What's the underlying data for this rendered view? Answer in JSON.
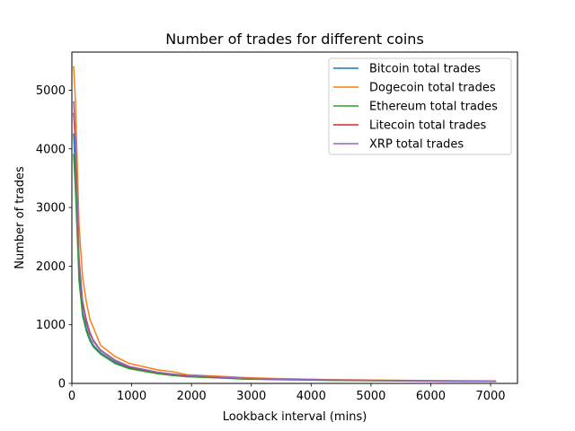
{
  "chart_data": {
    "type": "line",
    "title": "Number of trades for different coins",
    "xlabel": "Lookback interval (mins)",
    "ylabel": "Number of trades",
    "xlim": [
      0,
      7450
    ],
    "ylim": [
      0,
      5650
    ],
    "xticks": [
      0,
      1000,
      2000,
      3000,
      4000,
      5000,
      6000,
      7000
    ],
    "xtick_labels": [
      "0",
      "1000",
      "2000",
      "3000",
      "4000",
      "5000",
      "6000",
      "7000"
    ],
    "yticks": [
      0,
      1000,
      2000,
      3000,
      4000,
      5000
    ],
    "ytick_labels": [
      "0",
      "1000",
      "2000",
      "3000",
      "4000",
      "5000"
    ],
    "grid": false,
    "legend_position": "top-right",
    "x": [
      30,
      60,
      120,
      180,
      240,
      300,
      360,
      480,
      720,
      960,
      1440,
      1680,
      1920,
      2880,
      3360,
      4320,
      5040,
      5760,
      7080
    ],
    "series": [
      {
        "name": "Bitcoin total trades",
        "color": "#1f77b4",
        "values": [
          4250,
          3600,
          1900,
          1200,
          950,
          770,
          650,
          520,
          360,
          260,
          170,
          140,
          120,
          80,
          70,
          55,
          48,
          42,
          35
        ]
      },
      {
        "name": "Dogecoin total trades",
        "color": "#ff7f0e",
        "values": [
          5400,
          4800,
          2700,
          1800,
          1400,
          1100,
          950,
          650,
          460,
          340,
          230,
          200,
          150,
          100,
          85,
          65,
          57,
          50,
          43
        ]
      },
      {
        "name": "Ethereum total trades",
        "color": "#2ca02c",
        "values": [
          3900,
          3300,
          1750,
          1150,
          900,
          730,
          620,
          500,
          340,
          250,
          165,
          135,
          115,
          75,
          65,
          52,
          45,
          40,
          34
        ]
      },
      {
        "name": "Litecoin total trades",
        "color": "#d62728",
        "values": [
          4600,
          4100,
          2100,
          1350,
          1050,
          850,
          720,
          560,
          390,
          280,
          185,
          155,
          130,
          85,
          73,
          58,
          50,
          44,
          37
        ]
      },
      {
        "name": "XRP total trades",
        "color": "#9467bd",
        "values": [
          4800,
          4150,
          2150,
          1400,
          1100,
          880,
          740,
          570,
          400,
          290,
          190,
          160,
          135,
          88,
          75,
          60,
          52,
          46,
          38
        ]
      }
    ]
  }
}
